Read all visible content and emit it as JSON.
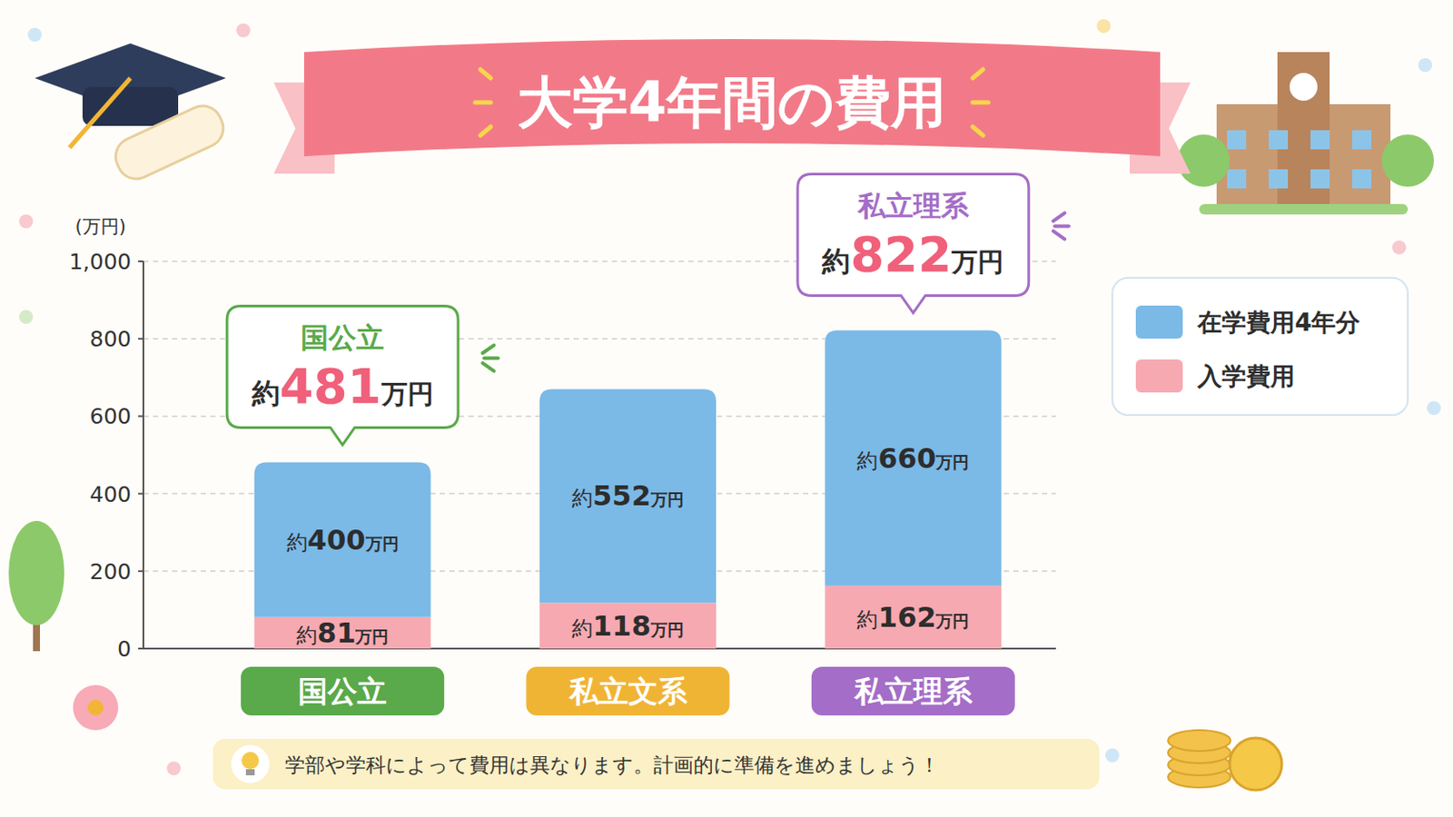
{
  "chart_data": {
    "type": "bar",
    "title": "大学4年間の費用",
    "y_label": "(万円)",
    "categories": [
      "国公立",
      "私立文系",
      "私立理系"
    ],
    "colors": [
      "#5aa94a",
      "#f0b434",
      "#a46dc7"
    ],
    "stacked": true,
    "data_labels": true,
    "grid": true,
    "legend": "right",
    "ylim": [
      0,
      1000
    ],
    "yticks": [
      0,
      200,
      400,
      600,
      800,
      {
        "value": 1000,
        "label": "1,000"
      }
    ],
    "series": [
      {
        "name": "入学費用",
        "color": "#f7a9b1",
        "values": [
          81,
          118,
          162
        ],
        "value_labels": [
          "約81万円",
          "約118万円",
          "約162万円"
        ]
      },
      {
        "name": "在学費用4年分",
        "color": "#7bb9e7",
        "values": [
          400,
          552,
          660
        ],
        "value_labels": [
          "約400万円",
          "約552万円",
          "約660万円"
        ]
      }
    ],
    "annotations": [
      {
        "text": "国公立",
        "prefix": "約",
        "value": 481,
        "unit": "万円"
      },
      {
        "text": "私立理系",
        "prefix": "約",
        "value": 822,
        "unit": "万円"
      }
    ],
    "note": "学部や学科によって費用は異なります。計画的に準備を進めましょう！"
  }
}
